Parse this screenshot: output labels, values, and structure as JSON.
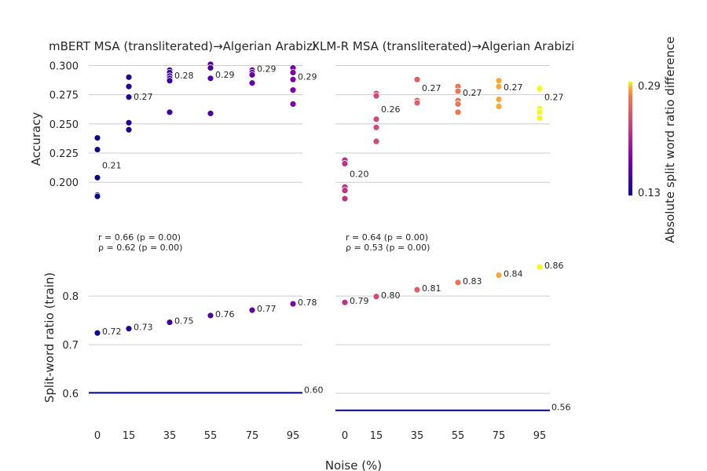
{
  "colors": {
    "colormap": "plasma",
    "baseline_line": "#00008b",
    "grid": "#cccccc",
    "point_edge": "#ffffff"
  },
  "shared": {
    "xlabel": "Noise (%)",
    "x_ticks": [
      0,
      15,
      35,
      55,
      75,
      95
    ],
    "colorbar": {
      "label": "Absolute split word ratio difference",
      "min_label": "0.13",
      "max_label": "0.29",
      "range": [
        0.13,
        0.29
      ]
    }
  },
  "chart_data": [
    {
      "id": "mbert",
      "type": "scatter",
      "title": "mBERT MSA (transliterated)→Algerian Arabizi",
      "accuracy": {
        "ylabel": "Accuracy",
        "y_ticks": [
          "0.300",
          "0.275",
          "0.250",
          "0.225",
          "0.200"
        ],
        "ylim": [
          0.18,
          0.305
        ],
        "points": [
          {
            "x": 0,
            "values": [
              0.238,
              0.228,
              0.204,
              0.189,
              0.188
            ]
          },
          {
            "x": 15,
            "values": [
              0.29,
              0.282,
              0.273,
              0.251,
              0.245
            ]
          },
          {
            "x": 35,
            "values": [
              0.296,
              0.294,
              0.291,
              0.289,
              0.287,
              0.26
            ]
          },
          {
            "x": 55,
            "values": [
              0.301,
              0.298,
              0.289,
              0.259
            ]
          },
          {
            "x": 75,
            "values": [
              0.296,
              0.294,
              0.292,
              0.285
            ]
          },
          {
            "x": 95,
            "values": [
              0.298,
              0.294,
              0.288,
              0.279,
              0.267
            ]
          }
        ],
        "mean_labels": [
          "0.21",
          "0.27",
          "0.28",
          "0.29",
          "0.29",
          "0.29"
        ],
        "stats": [
          "r = 0.66 (p = 0.00)",
          "ρ = 0.62 (p = 0.00)"
        ]
      },
      "split_ratio": {
        "ylabel": "Split-word ratio (train)",
        "y_ticks": [
          "0.8",
          "0.7",
          "0.6"
        ],
        "ylim": [
          0.55,
          0.86
        ],
        "values": [
          0.724,
          0.733,
          0.746,
          0.76,
          0.771,
          0.784
        ],
        "labels": [
          "0.72",
          "0.73",
          "0.75",
          "0.76",
          "0.77",
          "0.78"
        ],
        "baseline": 0.601,
        "baseline_label": "0.60"
      },
      "color_values": [
        0.13,
        0.14,
        0.15,
        0.16,
        0.17,
        0.18
      ]
    },
    {
      "id": "xlmr",
      "type": "scatter",
      "title": "XLM-R MSA (transliterated)→Algerian Arabizi",
      "accuracy": {
        "ylabel": "",
        "y_ticks": [],
        "ylim": [
          0.18,
          0.305
        ],
        "points": [
          {
            "x": 0,
            "values": [
              0.219,
              0.216,
              0.196,
              0.193,
              0.186
            ]
          },
          {
            "x": 15,
            "values": [
              0.276,
              0.274,
              0.254,
              0.247,
              0.235
            ]
          },
          {
            "x": 35,
            "values": [
              0.288,
              0.27,
              0.268
            ]
          },
          {
            "x": 55,
            "values": [
              0.282,
              0.278,
              0.27,
              0.267,
              0.26
            ]
          },
          {
            "x": 75,
            "values": [
              0.287,
              0.282,
              0.271,
              0.265
            ]
          },
          {
            "x": 95,
            "values": [
              0.281,
              0.28,
              0.263,
              0.26,
              0.255
            ]
          }
        ],
        "mean_labels": [
          "0.20",
          "0.26",
          "0.27",
          "0.27",
          "0.27",
          "0.27"
        ],
        "stats": [
          "r = 0.64 (p = 0.00)",
          "ρ = 0.53 (p = 0.00)"
        ]
      },
      "split_ratio": {
        "ylabel": "",
        "y_ticks": [],
        "ylim": [
          0.55,
          0.86
        ],
        "values": [
          0.787,
          0.799,
          0.813,
          0.828,
          0.843,
          0.86
        ],
        "labels": [
          "0.79",
          "0.80",
          "0.81",
          "0.83",
          "0.84",
          "0.86"
        ],
        "baseline": 0.565,
        "baseline_label": "0.56"
      },
      "color_values": [
        0.22,
        0.235,
        0.25,
        0.265,
        0.28,
        0.29
      ]
    }
  ]
}
